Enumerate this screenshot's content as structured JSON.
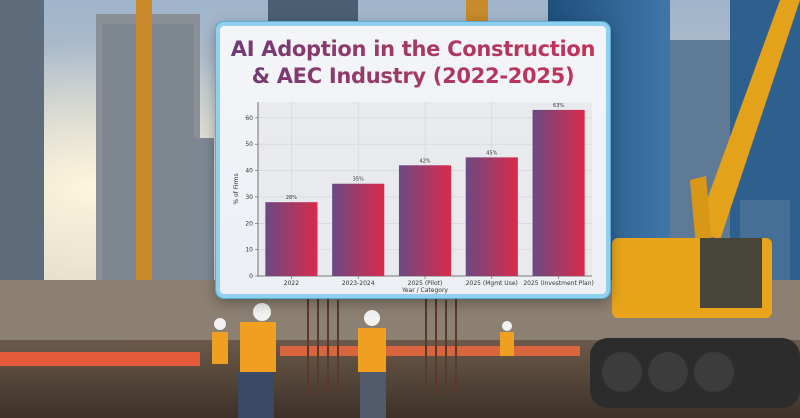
{
  "chart_data": {
    "type": "bar",
    "title": "AI Adoption in the Construction & AEC Industry (2022-2025)",
    "xlabel": "Year / Category",
    "ylabel": "% of Firms",
    "categories": [
      "2022",
      "2023-2024",
      "2025 (Pilot)",
      "2025 (Mgmt Use)",
      "2025 (Investment Plan)"
    ],
    "values": [
      28,
      35,
      42,
      45,
      63
    ],
    "data_labels": [
      "28%",
      "35%",
      "42%",
      "45%",
      "63%"
    ],
    "yticks": [
      0,
      10,
      20,
      30,
      40,
      50,
      60
    ],
    "ylim": [
      0,
      66
    ],
    "grid": true,
    "colors": {
      "bar_top": "#d92a4a",
      "bar_left": "#6b4a82",
      "grid": "#cfd3da"
    }
  }
}
